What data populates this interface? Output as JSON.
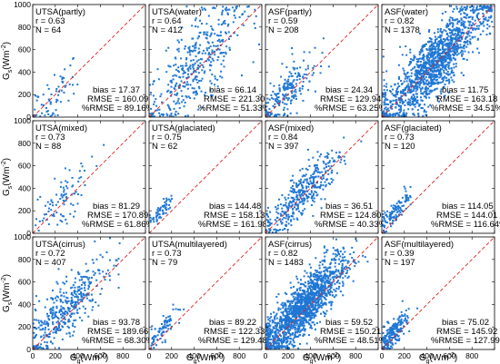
{
  "chart_data": {
    "type": "scatter",
    "layout": "grid 3 rows x 4 columns, shared axes",
    "xlabel": {
      "base": "G",
      "sub": "g",
      "unit_pre": "(Wm",
      "unit_exp": "-2",
      "unit_post": ")"
    },
    "ylabel": {
      "base": "G",
      "sub": "s",
      "unit_pre": "(Wm",
      "unit_exp": "-2",
      "unit_post": ")"
    },
    "xlim": [
      0,
      1000
    ],
    "ylim": [
      0,
      1000
    ],
    "x_ticks": [
      "0",
      "200",
      "400",
      "600",
      "800"
    ],
    "y_ticks": [
      "0",
      "200",
      "400",
      "600",
      "800",
      "1000"
    ],
    "reference_line": "1:1 line, red dashed",
    "point_color": "#1f77d4",
    "line_color": "#e02020",
    "panels": [
      {
        "title": "UTSA(partly)",
        "r": "r = 0.63",
        "n": "N = 64",
        "bias": "bias = 17.37",
        "rmse": "RMSE = 160.09",
        "prmse": "%RMSE = 89.16%",
        "count": 64,
        "center": 180,
        "spread": 120,
        "bias_value": 17.37
      },
      {
        "title": "UTSA(water)",
        "r": "r = 0.64",
        "n": "N = 412",
        "bias": "bias = 66.14",
        "rmse": "RMSE = 221.30",
        "prmse": "%RMSE = 51.33%",
        "count": 412,
        "center": 430,
        "spread": 220,
        "bias_value": 66.14
      },
      {
        "title": "ASF(partly)",
        "r": "r = 0.59",
        "n": "N = 208",
        "bias": "bias = 24.34",
        "rmse": "RMSE = 129.94",
        "prmse": "%RMSE = 63.25%",
        "count": 208,
        "center": 200,
        "spread": 130,
        "bias_value": 24.34
      },
      {
        "title": "ASF(water)",
        "r": "r = 0.82",
        "n": "N = 1378",
        "bias": "bias = 11.75",
        "rmse": "RMSE = 163.18",
        "prmse": "%RMSE = 34.51%",
        "count": 1378,
        "center": 470,
        "spread": 230,
        "bias_value": 11.75
      },
      {
        "title": "UTSA(mixed)",
        "r": "r = 0.73",
        "n": "N = 88",
        "bias": "bias = 81.29",
        "rmse": "RMSE = 170.89",
        "prmse": "%RMSE = 61.86%",
        "count": 88,
        "center": 280,
        "spread": 140,
        "bias_value": 81.29
      },
      {
        "title": "UTSA(glaciated)",
        "r": "r = 0.75",
        "n": "N = 62",
        "bias": "bias = 144.48",
        "rmse": "RMSE = 158.13",
        "prmse": "%RMSE = 161.98%",
        "count": 62,
        "center": 110,
        "spread": 60,
        "bias_value": 144.48
      },
      {
        "title": "ASF(mixed)",
        "r": "r = 0.84",
        "n": "N = 397",
        "bias": "bias = 36.51",
        "rmse": "RMSE = 124.80",
        "prmse": "%RMSE = 40.33%",
        "count": 397,
        "center": 320,
        "spread": 160,
        "bias_value": 36.51
      },
      {
        "title": "ASF(glaciated)",
        "r": "r = 0.73",
        "n": "N = 120",
        "bias": "bias = 114.05",
        "rmse": "RMSE = 144.01",
        "prmse": "%RMSE = 116.64%",
        "count": 120,
        "center": 120,
        "spread": 70,
        "bias_value": 114.05
      },
      {
        "title": "UTSA(cirrus)",
        "r": "r = 0.72",
        "n": "N = 407",
        "bias": "bias = 93.78",
        "rmse": "RMSE = 189.66",
        "prmse": "%RMSE = 68.30%",
        "count": 407,
        "center": 300,
        "spread": 170,
        "bias_value": 93.78
      },
      {
        "title": "UTSA(multilayered)",
        "r": "r = 0.73",
        "n": "N = 79",
        "bias": "bias = 89.22",
        "rmse": "RMSE = 122.33",
        "prmse": "%RMSE = 129.48%",
        "count": 79,
        "center": 110,
        "spread": 70,
        "bias_value": 89.22
      },
      {
        "title": "ASF(cirrus)",
        "r": "r = 0.82",
        "n": "N = 1483",
        "bias": "bias = 59.52",
        "rmse": "RMSE = 150.21",
        "prmse": "%RMSE = 48.51%",
        "count": 1483,
        "center": 330,
        "spread": 190,
        "bias_value": 59.52
      },
      {
        "title": "ASF(multilayered)",
        "r": "r = 0.39",
        "n": "N = 197",
        "bias": "bias = 75.02",
        "rmse": "RMSE = 145.92",
        "prmse": "%RMSE = 127.99%",
        "count": 197,
        "center": 100,
        "spread": 60,
        "bias_value": 75.02
      }
    ]
  }
}
